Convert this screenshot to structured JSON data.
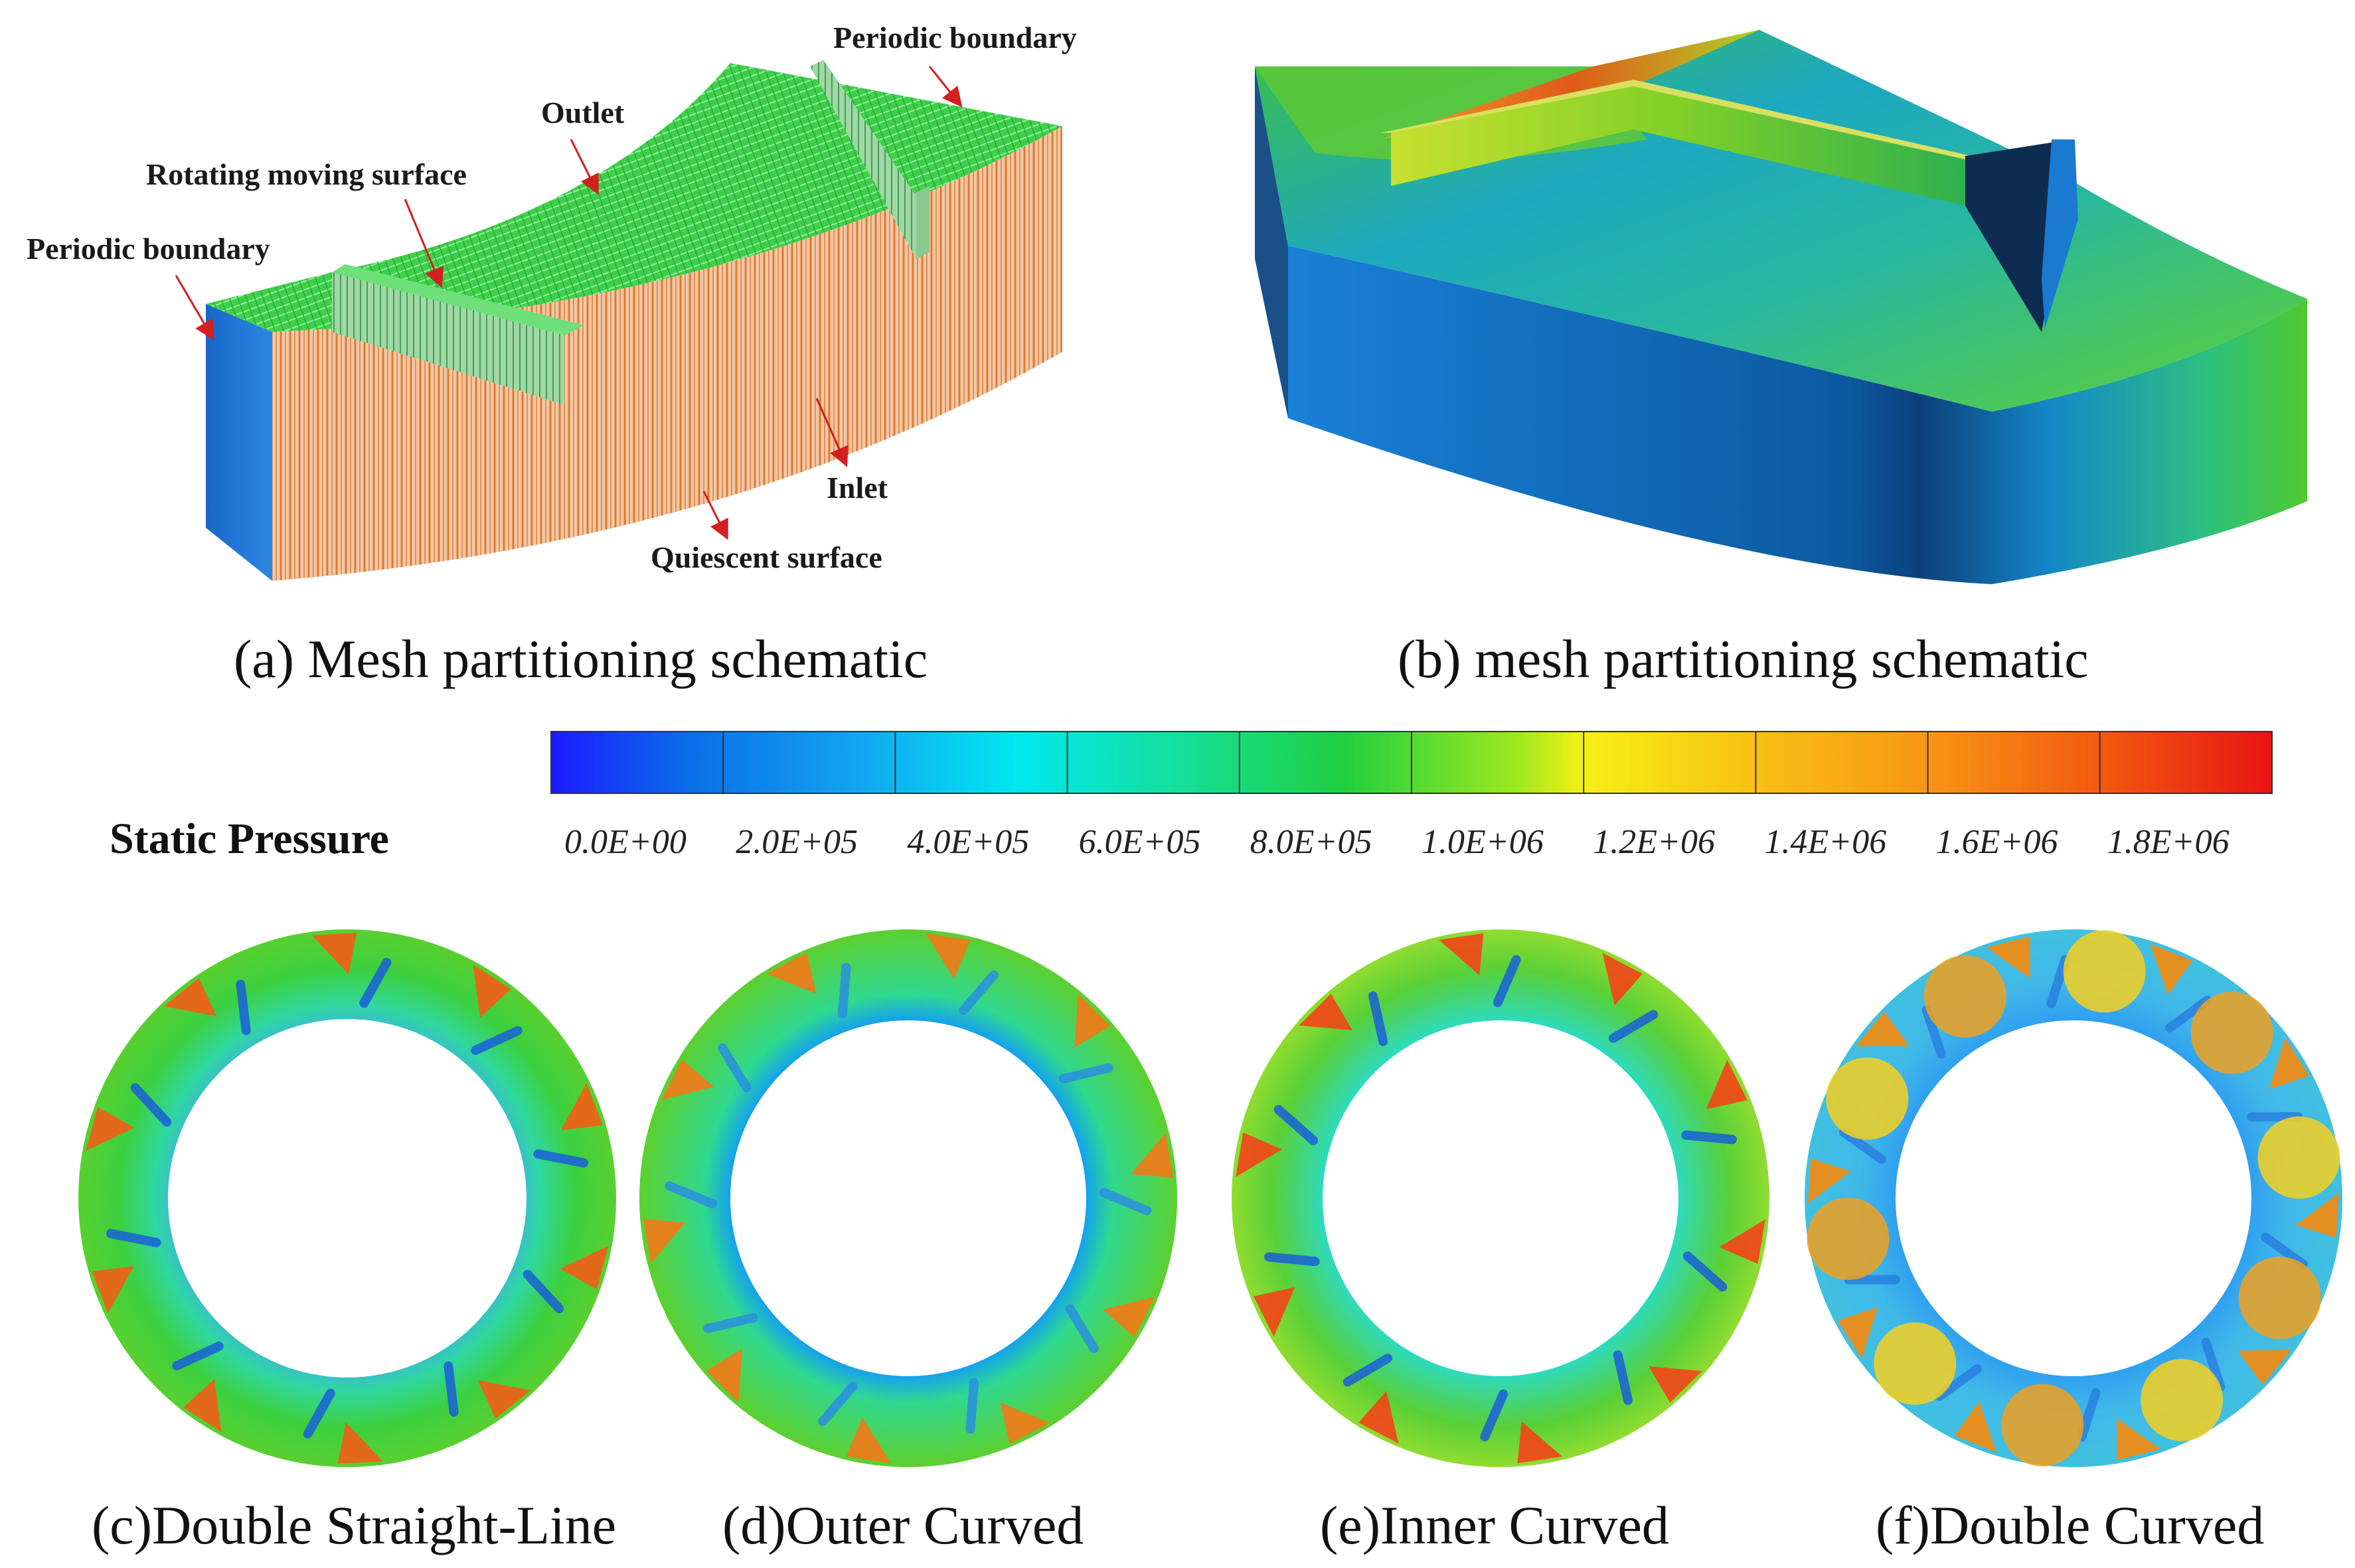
{
  "panels": {
    "a": {
      "caption": "(a) Mesh partitioning schematic",
      "labels": {
        "periodic_top": "Periodic boundary",
        "outlet": "Outlet",
        "rotating": "Rotating moving surface",
        "periodic_left": "Periodic boundary",
        "inlet": "Inlet",
        "quiescent": "Quiescent surface"
      }
    },
    "b": {
      "caption": "(b) mesh partitioning schematic"
    },
    "c": {
      "caption": "(c)Double Straight-Line"
    },
    "d": {
      "caption": "(d)Outer Curved"
    },
    "e": {
      "caption": "(e)Inner Curved"
    },
    "f": {
      "caption": "(f)Double Curved"
    }
  },
  "colorbar": {
    "title": "Static Pressure",
    "ticks": [
      "0.0E+00",
      "2.0E+05",
      "4.0E+05",
      "6.0E+05",
      "8.0E+05",
      "1.0E+06",
      "1.2E+06",
      "1.4E+06",
      "1.6E+06",
      "1.8E+06"
    ],
    "colors": [
      "#1a1aff",
      "#0a6ee8",
      "#14a6f0",
      "#00e8f0",
      "#14e0a0",
      "#20d040",
      "#9be820",
      "#f6f014",
      "#f8c014",
      "#f89614",
      "#f86a0e",
      "#f23a10",
      "#e81414"
    ]
  },
  "colors": {
    "green": "#3ed84a",
    "blue": "#1b74d4",
    "orange": "#e09060",
    "red": "#e02a10"
  }
}
